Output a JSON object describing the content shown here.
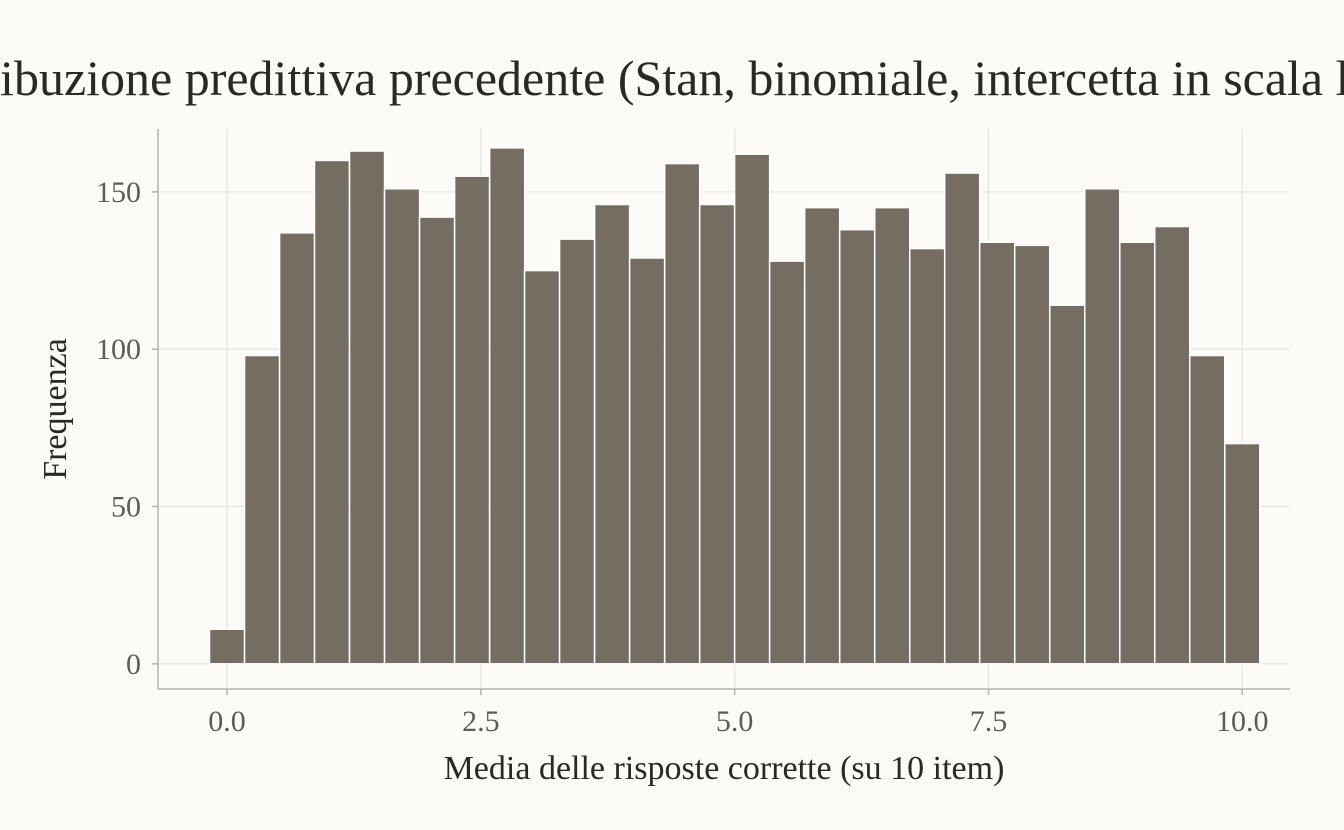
{
  "chart_data": {
    "type": "bar",
    "title": "Distribuzione predittiva precedente (Stan, binomiale, intercetta in scala logit)",
    "xlabel": "Media delle risposte corrette (su 10 item)",
    "ylabel": "Frequenza",
    "xlim": [
      -0.68,
      10.47
    ],
    "ylim": [
      -8,
      170
    ],
    "x_ticks": [
      0.0,
      2.5,
      5.0,
      7.5,
      10.0
    ],
    "x_tick_labels": [
      "0.0",
      "2.5",
      "5.0",
      "7.5",
      "10.0"
    ],
    "y_ticks": [
      0,
      50,
      100,
      150
    ],
    "y_tick_labels": [
      "0",
      "50",
      "100",
      "150"
    ],
    "grid": true,
    "bin_width": 0.3448,
    "bin_centers": [
      0.0,
      0.345,
      0.69,
      1.034,
      1.379,
      1.724,
      2.069,
      2.414,
      2.759,
      3.103,
      3.448,
      3.793,
      4.138,
      4.483,
      4.828,
      5.172,
      5.517,
      5.862,
      6.207,
      6.552,
      6.897,
      7.241,
      7.586,
      7.931,
      8.276,
      8.621,
      8.966,
      9.31,
      9.655,
      10.0
    ],
    "values": [
      11,
      98,
      137,
      160,
      163,
      151,
      142,
      155,
      164,
      125,
      135,
      146,
      129,
      159,
      146,
      162,
      128,
      145,
      138,
      145,
      132,
      156,
      134,
      133,
      114,
      151,
      134,
      139,
      98,
      70
    ],
    "colors": {
      "bar_fill": "#6e645a",
      "bar_stroke": "#ffffff",
      "background": "#fcfbf7",
      "grid": "#e7e4de",
      "axis": "#b7b3ad"
    }
  }
}
